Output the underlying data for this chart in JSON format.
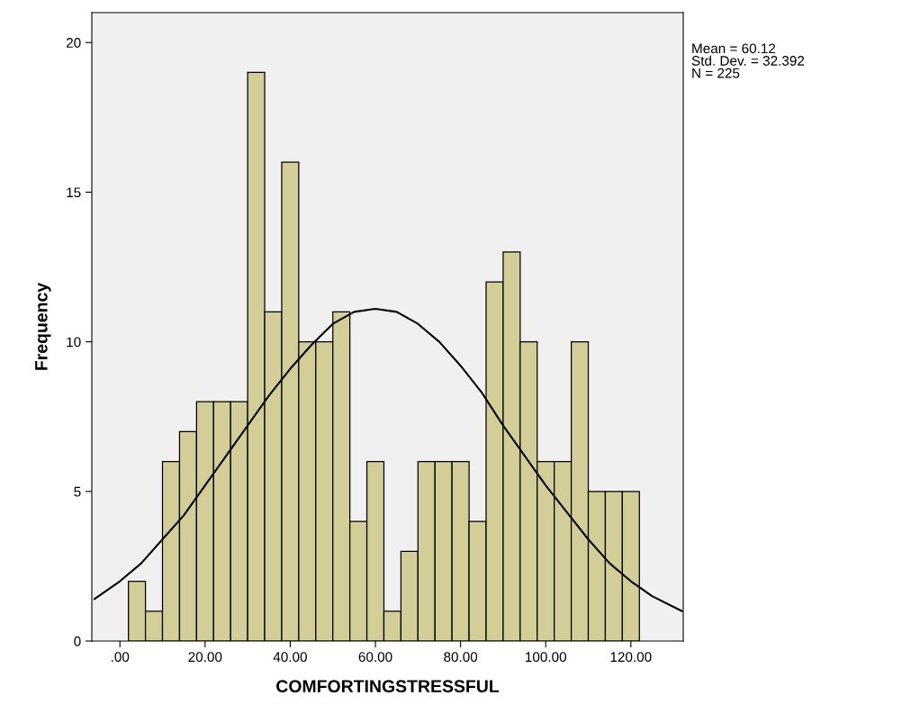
{
  "chart_data": {
    "type": "histogram",
    "xlabel": "COMFORTINGSTRESSFUL",
    "ylabel": "Frequency",
    "bins": [
      2,
      6,
      10,
      14,
      18,
      22,
      26,
      30,
      34,
      38,
      42,
      46,
      50,
      54,
      58,
      62,
      66,
      70,
      74,
      78,
      82,
      86,
      90,
      94,
      98,
      102,
      106,
      110,
      114,
      118,
      122
    ],
    "values": [
      2,
      1,
      6,
      7,
      8,
      8,
      8,
      19,
      11,
      16,
      10,
      10,
      11,
      4,
      6,
      1,
      3,
      6,
      6,
      6,
      4,
      12,
      13,
      10,
      6,
      6,
      10,
      5,
      5,
      5
    ],
    "color": "#d3ce97",
    "series": [
      {
        "type": "line",
        "color": "#000000",
        "x": [
          -6,
          0,
          5,
          10,
          15,
          20,
          25,
          30,
          35,
          40,
          45,
          50,
          55,
          60,
          65,
          70,
          75,
          80,
          85,
          90,
          95,
          100,
          105,
          110,
          115,
          120,
          125,
          132
        ],
        "values": [
          1.4,
          2.0,
          2.6,
          3.4,
          4.2,
          5.2,
          6.2,
          7.2,
          8.2,
          9.1,
          9.9,
          10.6,
          11.0,
          11.1,
          11.0,
          10.6,
          10.0,
          9.2,
          8.3,
          7.2,
          6.2,
          5.2,
          4.3,
          3.4,
          2.6,
          2.0,
          1.5,
          1.0
        ]
      }
    ],
    "xlim": [
      -6.6,
      132.3
    ],
    "ylim": [
      0,
      21
    ],
    "xticks": [
      {
        "value": 0,
        "label": ".00"
      },
      {
        "value": 20,
        "label": "20.00"
      },
      {
        "value": 40,
        "label": "40.00"
      },
      {
        "value": 60,
        "label": "60.00"
      },
      {
        "value": 80,
        "label": "80.00"
      },
      {
        "value": 100,
        "label": "100.00"
      },
      {
        "value": 120,
        "label": "120.00"
      }
    ],
    "yticks": [
      0,
      5,
      10,
      15,
      20
    ],
    "grid": false,
    "legend": false,
    "annotations": [
      "Mean = 60.12\nStd. Dev. = 32.392\nN = 225"
    ]
  }
}
